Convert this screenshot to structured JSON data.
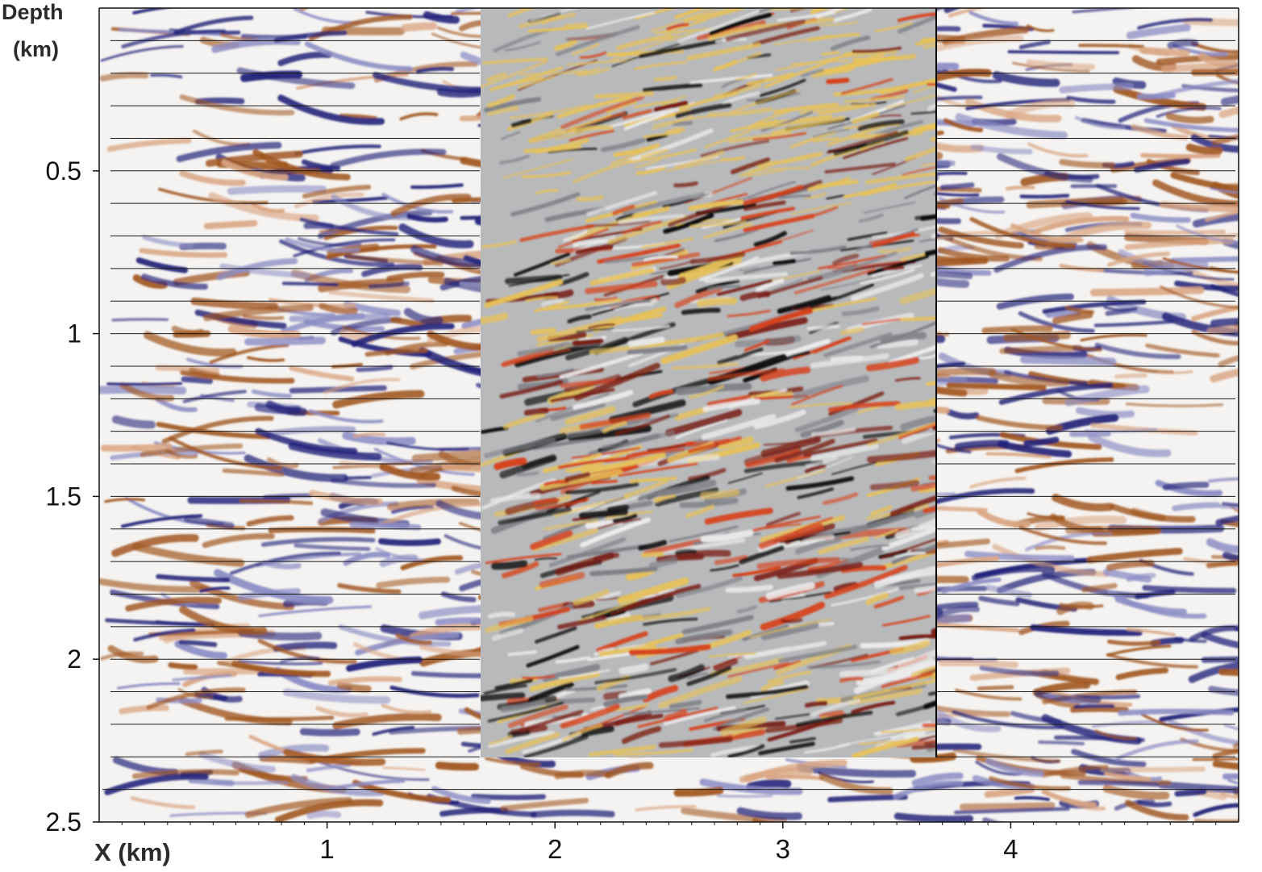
{
  "chart_data": {
    "type": "heatmap",
    "title": "",
    "xlabel": "X (km)",
    "ylabel": "Depth (km)",
    "ylabel_lines": [
      "Depth",
      "(km)"
    ],
    "xlim": [
      0,
      5
    ],
    "ylim": [
      2.5,
      0
    ],
    "x_ticks": [
      1,
      2,
      3,
      4
    ],
    "x_tick_labels": [
      "1",
      "2",
      "3",
      "4"
    ],
    "y_ticks": [
      0.5,
      1,
      1.5,
      2,
      2.5
    ],
    "y_tick_labels": [
      "0.5",
      "1",
      "1.5",
      "2",
      "2.5"
    ],
    "grid": "horizontal lines every 0.1 km depth",
    "horizontal_line_depths": [
      0.1,
      0.2,
      0.3,
      0.4,
      0.5,
      0.6,
      0.7,
      0.8,
      0.9,
      1.0,
      1.1,
      1.2,
      1.3,
      1.4,
      1.5,
      1.6,
      1.7,
      1.8,
      1.9,
      2.0,
      2.1,
      2.2,
      2.3,
      2.4,
      2.5
    ],
    "background_panel": {
      "x_range": [
        0,
        5
      ],
      "depth_range": [
        0,
        2.5
      ],
      "colormap": "seismic brown-white-blue",
      "colors": {
        "positive": "#a0561f",
        "neutral": "#f5f3f1",
        "negative": "#23237a"
      }
    },
    "inset_panel": {
      "x_range": [
        1.67,
        3.67
      ],
      "depth_range": [
        0,
        2.3
      ],
      "colormap": "grey-yellow-red-black",
      "colors": {
        "base": "#b8b9bb",
        "light": "#e7c25a",
        "mid": "#d6431c",
        "dark": "#7a1e14",
        "black": "#0a0a0a"
      }
    }
  },
  "colors": {
    "axis": "#111111",
    "grid_line": "#1a1a1a"
  }
}
